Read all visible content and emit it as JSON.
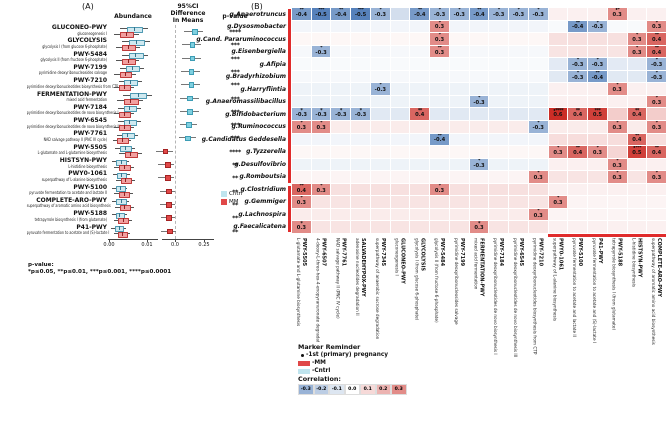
{
  "figure": {
    "panel_a_label": "(A)",
    "panel_b_label": "(B)"
  },
  "panel_a": {
    "headers": {
      "abundance": "Abundance",
      "ci_line1": "95%CI",
      "ci_line2": "Difference",
      "ci_line3": "In Means",
      "p": "p-value"
    },
    "axis": {
      "ab_ticks": [
        "0.00",
        "0.01"
      ],
      "diff_ticks": [
        "0.0",
        "0.25"
      ]
    },
    "legend": [
      {
        "label": "Cntrl",
        "color": "#bfe4ee"
      },
      {
        "label": "MM",
        "color": "#e04848"
      }
    ],
    "pnote_title": "p-value:",
    "pnote": "*p≤0.05, **p≤0.01, ***p≤0.001, ****p≤0.0001"
  },
  "panel_b": {
    "marker_legend": {
      "title": "Marker Reminder",
      "items": [
        {
          "marker": "dot",
          "label": "-1st (primary) pregnancy"
        },
        {
          "marker": "mm",
          "label": "-MM"
        },
        {
          "marker": "cntrl",
          "label": "-Cntrl"
        }
      ]
    },
    "correlation_legend": {
      "title": "Correlation:",
      "values": [
        -0.3,
        -0.2,
        -0.1,
        0.0,
        0.1,
        0.2,
        0.3
      ]
    },
    "colors": {
      "positive": "#cb2d26",
      "negative": "#4575b4",
      "cluster_bar": "#e02b2b"
    }
  },
  "chart_data": [
    {
      "type": "table",
      "title": "(A) Differentially abundant pathways (forest plot)",
      "columns": [
        "pathway",
        "description",
        "p_stars",
        "cntrl_abundance_center_spread",
        "mm_abundance_center_spread",
        "diff_mean",
        "diff_ci",
        "higher_in"
      ],
      "abundance_xlim": [
        0.0,
        0.012
      ],
      "diff_xlim": [
        -0.18,
        0.3
      ],
      "rows": [
        {
          "pathway": "GLUCONEO-PWY",
          "desc": "gluconeogenesis I",
          "p": "****",
          "cntrl": [
            0.0065,
            0.0018
          ],
          "mm": [
            0.0045,
            0.0016
          ],
          "diff_mean": 0.16,
          "diff_ci": [
            0.08,
            0.24
          ],
          "higher_in": "Cntrl"
        },
        {
          "pathway": "GLYCOLYSIS",
          "desc": "glycolysis I (from glucose 6-phosphate)",
          "p": "***",
          "cntrl": [
            0.007,
            0.0018
          ],
          "mm": [
            0.005,
            0.0016
          ],
          "diff_mean": 0.14,
          "diff_ci": [
            0.06,
            0.22
          ],
          "higher_in": "Cntrl"
        },
        {
          "pathway": "PWY-5484",
          "desc": "glycolysis II (from fructose 6-phosphate)",
          "p": "***",
          "cntrl": [
            0.0068,
            0.0017
          ],
          "mm": [
            0.0049,
            0.0015
          ],
          "diff_mean": 0.14,
          "diff_ci": [
            0.06,
            0.22
          ],
          "higher_in": "Cntrl"
        },
        {
          "pathway": "PWY-7199",
          "desc": "pyrimidine deoxyribonucleosides salvage",
          "p": "***",
          "cntrl": [
            0.006,
            0.0016
          ],
          "mm": [
            0.0042,
            0.0014
          ],
          "diff_mean": 0.13,
          "diff_ci": [
            0.05,
            0.21
          ],
          "higher_in": "Cntrl"
        },
        {
          "pathway": "PWY-7210",
          "desc": "pyrimidine deoxyribonucleotides biosynthesis from CTP",
          "p": "***",
          "cntrl": [
            0.0055,
            0.0015
          ],
          "mm": [
            0.0039,
            0.0013
          ],
          "diff_mean": 0.13,
          "diff_ci": [
            0.05,
            0.21
          ],
          "higher_in": "Cntrl"
        },
        {
          "pathway": "FERMENTATION-PWY",
          "desc": "mixed acid fermentation",
          "p": "***",
          "cntrl": [
            0.0075,
            0.0019
          ],
          "mm": [
            0.0056,
            0.0017
          ],
          "diff_mean": 0.12,
          "diff_ci": [
            0.04,
            0.2
          ],
          "higher_in": "Cntrl"
        },
        {
          "pathway": "PWY-7184",
          "desc": "pyrimidine deoxyribonucleotides de novo biosynthesis I",
          "p": "***",
          "cntrl": [
            0.0053,
            0.0015
          ],
          "mm": [
            0.0038,
            0.0013
          ],
          "diff_mean": 0.12,
          "diff_ci": [
            0.04,
            0.2
          ],
          "higher_in": "Cntrl"
        },
        {
          "pathway": "PWY-6545",
          "desc": "pyrimidine deoxyribonucleotides de novo biosynthesis III",
          "p": "***",
          "cntrl": [
            0.0053,
            0.0015
          ],
          "mm": [
            0.0038,
            0.0013
          ],
          "diff_mean": 0.11,
          "diff_ci": [
            0.04,
            0.19
          ],
          "higher_in": "Cntrl"
        },
        {
          "pathway": "PWY-7761",
          "desc": "NAD salvage pathway II (PNC IV cycle)",
          "p": "***",
          "cntrl": [
            0.0048,
            0.0014
          ],
          "mm": [
            0.0034,
            0.0012
          ],
          "diff_mean": 0.1,
          "diff_ci": [
            0.03,
            0.18
          ],
          "higher_in": "Cntrl"
        },
        {
          "pathway": "PWY-5505",
          "desc": "L-glutamate and L-glutamine biosynthesis",
          "p": "****",
          "cntrl": [
            0.0042,
            0.0013
          ],
          "mm": [
            0.0056,
            0.0015
          ],
          "diff_mean": -0.09,
          "diff_ci": [
            -0.16,
            -0.02
          ],
          "higher_in": "MM"
        },
        {
          "pathway": "HISTSYN-PWY",
          "desc": "L-histidine biosynthesis",
          "p": "**",
          "cntrl": [
            0.003,
            0.0011
          ],
          "mm": [
            0.004,
            0.0013
          ],
          "diff_mean": -0.07,
          "diff_ci": [
            -0.14,
            -0.01
          ],
          "higher_in": "MM"
        },
        {
          "pathway": "PWY0-1061",
          "desc": "superpathway of L-alanine biosynthesis",
          "p": "**",
          "cntrl": [
            0.0032,
            0.0011
          ],
          "mm": [
            0.0043,
            0.0013
          ],
          "diff_mean": -0.07,
          "diff_ci": [
            -0.14,
            -0.01
          ],
          "higher_in": "MM"
        },
        {
          "pathway": "PWY-5100",
          "desc": "pyruvate fermentation to acetate and lactate II",
          "p": "**",
          "cntrl": [
            0.0028,
            0.001
          ],
          "mm": [
            0.0038,
            0.0012
          ],
          "diff_mean": -0.06,
          "diff_ci": [
            -0.13,
            0.0
          ],
          "higher_in": "MM"
        },
        {
          "pathway": "COMPLETE-ARO-PWY",
          "desc": "superpathway of aromatic amino acid biosynthesis",
          "p": "**",
          "cntrl": [
            0.003,
            0.0011
          ],
          "mm": [
            0.004,
            0.0012
          ],
          "diff_mean": -0.06,
          "diff_ci": [
            -0.13,
            0.0
          ],
          "higher_in": "MM"
        },
        {
          "pathway": "PWY-5188",
          "desc": "tetrapyrrole biosynthesis I (from glutamate)",
          "p": "**",
          "cntrl": [
            0.0027,
            0.001
          ],
          "mm": [
            0.0036,
            0.0012
          ],
          "diff_mean": -0.06,
          "diff_ci": [
            -0.12,
            0.0
          ],
          "higher_in": "MM"
        },
        {
          "pathway": "P41-PWY",
          "desc": "pyruvate fermentation to acetate and (S)-lactate I",
          "p": "**",
          "cntrl": [
            0.0025,
            0.001
          ],
          "mm": [
            0.0034,
            0.0011
          ],
          "diff_mean": -0.05,
          "diff_ci": [
            -0.12,
            0.01
          ],
          "higher_in": "MM"
        }
      ]
    },
    {
      "type": "heatmap",
      "title": "(B) Genus-pathway correlations",
      "value_range": [
        -0.3,
        0.3
      ],
      "cluster_split": 13,
      "rows": [
        "g.Anaerotruncus",
        "g.Dysosmobacter",
        "g.Cand. Pararuminococcus",
        "g.Eisenbergiella",
        "g.Afipia",
        "g.Bradyrhizobium",
        "g.Harryflintia",
        "g.Anaeromassilibacillus",
        "g.Bifidobacterium",
        "g.Ruminococcus",
        "g.Candidatus Geddesella",
        "g.Tyzzerella",
        "g.Desulfovibrio",
        "g.Romboutsia",
        "g.Clostridium",
        "g.Gemmiger",
        "g.Lachnospira",
        "g.Faecalicatena"
      ],
      "cols": [
        {
          "id": "PWY-5505",
          "desc": "L-glutamate and L-glutamine biosynthesis"
        },
        {
          "id": "PWY-6507",
          "desc": "4-deoxy-L-threo-hex-4-enopyranuronate degradation"
        },
        {
          "id": "PWY-7761",
          "desc": "NAD salvage pathway II (PNC IV cycle)"
        },
        {
          "id": "SALVADEHYPOX-PWY",
          "desc": "adenosine nucleotides degradation II"
        },
        {
          "id": "PWY-7345",
          "desc": "superpathway of anaerobic sucrose degradation"
        },
        {
          "id": "GLUCONEO-PWY",
          "desc": "gluconeogenesis I"
        },
        {
          "id": "GLYCOLYSIS",
          "desc": "glycolysis I (from glucose 6-phosphate)"
        },
        {
          "id": "PWY-5484",
          "desc": "glycolysis II (from fructose 6-phosphate)"
        },
        {
          "id": "PWY-7199",
          "desc": "pyrimidine deoxyribonucleosides salvage"
        },
        {
          "id": "FERMENTATION-PWY",
          "desc": "mixed acid fermentation"
        },
        {
          "id": "PWY-7184",
          "desc": "pyrimidine deoxyribonucleotides de novo biosynthesis I"
        },
        {
          "id": "PWY-6545",
          "desc": "pyrimidine deoxyribonucleotides de novo biosynthesis III"
        },
        {
          "id": "PWY-7210",
          "desc": "pyrimidine deoxyribonucleotides biosynthesis from CTP"
        },
        {
          "id": "PWY0-1061",
          "desc": "superpathway of L-alanine biosynthesis"
        },
        {
          "id": "PWY-5100",
          "desc": "pyruvate fermentation to acetate and lactate II"
        },
        {
          "id": "P41-PWY",
          "desc": "pyruvate fermentation to acetate and (S)-lactate I"
        },
        {
          "id": "PWY-5188",
          "desc": "tetrapyrrole biosynthesis I (from glutamate)"
        },
        {
          "id": "HISTSYN-PWY",
          "desc": "L-histidine biosynthesis"
        },
        {
          "id": "COMPLETE-ARO-PWY",
          "desc": "superpathway of aromatic amino acid biosynthesis"
        }
      ],
      "row_base_tint": [
        [
          -0.13,
          0.04
        ],
        [
          -0.04,
          -0.02
        ],
        [
          0.02,
          0.08
        ],
        [
          -0.03,
          0.07
        ],
        [
          -0.02,
          -0.08
        ],
        [
          -0.03,
          -0.09
        ],
        [
          -0.05,
          0.04
        ],
        [
          -0.05,
          0.04
        ],
        [
          -0.09,
          0.13
        ],
        [
          0.05,
          0.05
        ],
        [
          -0.04,
          0.09
        ],
        [
          0.02,
          0.11
        ],
        [
          -0.05,
          0.04
        ],
        [
          0.03,
          0.07
        ],
        [
          0.08,
          0.04
        ],
        [
          0.07,
          0.03
        ],
        [
          0.05,
          0.03
        ],
        [
          0.07,
          0.04
        ]
      ],
      "cells": [
        {
          "r": 0,
          "c": 0,
          "v": -0.4,
          "s": "**"
        },
        {
          "r": 0,
          "c": 1,
          "v": -0.5,
          "s": "***"
        },
        {
          "r": 0,
          "c": 2,
          "v": -0.4,
          "s": "**"
        },
        {
          "r": 0,
          "c": 3,
          "v": -0.5,
          "s": "***"
        },
        {
          "r": 0,
          "c": 4,
          "v": -0.3,
          "s": "*"
        },
        {
          "r": 0,
          "c": 6,
          "v": -0.4,
          "s": "**"
        },
        {
          "r": 0,
          "c": 7,
          "v": -0.3,
          "s": "*"
        },
        {
          "r": 0,
          "c": 8,
          "v": -0.3,
          "s": "*"
        },
        {
          "r": 0,
          "c": 9,
          "v": -0.4,
          "s": "**"
        },
        {
          "r": 0,
          "c": 10,
          "v": -0.3,
          "s": "*"
        },
        {
          "r": 0,
          "c": 11,
          "v": -0.3,
          "s": "*"
        },
        {
          "r": 0,
          "c": 12,
          "v": -0.3,
          "s": "*"
        },
        {
          "r": 0,
          "c": 16,
          "v": 0.3,
          "s": "*",
          "dot": true
        },
        {
          "r": 1,
          "c": 7,
          "v": 0.3,
          "s": "*"
        },
        {
          "r": 1,
          "c": 14,
          "v": -0.4,
          "s": "**"
        },
        {
          "r": 1,
          "c": 15,
          "v": -0.3,
          "s": "*"
        },
        {
          "r": 1,
          "c": 18,
          "v": 0.3,
          "s": "*"
        },
        {
          "r": 2,
          "c": 7,
          "v": 0.3,
          "s": "*"
        },
        {
          "r": 2,
          "c": 17,
          "v": 0.3,
          "s": "*"
        },
        {
          "r": 2,
          "c": 18,
          "v": 0.4,
          "s": "**"
        },
        {
          "r": 3,
          "c": 1,
          "v": -0.3,
          "s": "*"
        },
        {
          "r": 3,
          "c": 7,
          "v": 0.3,
          "s": "**"
        },
        {
          "r": 3,
          "c": 17,
          "v": 0.3,
          "s": "*"
        },
        {
          "r": 3,
          "c": 18,
          "v": 0.4,
          "s": "**"
        },
        {
          "r": 4,
          "c": 14,
          "v": -0.3,
          "s": "*"
        },
        {
          "r": 4,
          "c": 15,
          "v": -0.3,
          "s": "*"
        },
        {
          "r": 4,
          "c": 18,
          "v": -0.3,
          "s": "*"
        },
        {
          "r": 5,
          "c": 14,
          "v": -0.3,
          "s": "*"
        },
        {
          "r": 5,
          "c": 15,
          "v": -0.4,
          "s": "**"
        },
        {
          "r": 5,
          "c": 18,
          "v": -0.3,
          "s": "*"
        },
        {
          "r": 6,
          "c": 4,
          "v": -0.3,
          "s": "*"
        },
        {
          "r": 6,
          "c": 16,
          "v": 0.3,
          "s": "*"
        },
        {
          "r": 7,
          "c": 9,
          "v": -0.3,
          "s": "*"
        },
        {
          "r": 7,
          "c": 18,
          "v": 0.3,
          "s": "*"
        },
        {
          "r": 8,
          "c": 0,
          "v": -0.3,
          "s": "*"
        },
        {
          "r": 8,
          "c": 1,
          "v": -0.3,
          "s": "*"
        },
        {
          "r": 8,
          "c": 2,
          "v": -0.3,
          "s": "*"
        },
        {
          "r": 8,
          "c": 3,
          "v": -0.3,
          "s": "*"
        },
        {
          "r": 8,
          "c": 6,
          "v": 0.4,
          "s": "**"
        },
        {
          "r": 8,
          "c": 13,
          "v": 0.6,
          "s": "****",
          "dot": true
        },
        {
          "r": 8,
          "c": 14,
          "v": 0.4,
          "s": "**"
        },
        {
          "r": 8,
          "c": 15,
          "v": 0.5,
          "s": "***"
        },
        {
          "r": 8,
          "c": 17,
          "v": 0.4,
          "s": "**"
        },
        {
          "r": 9,
          "c": 0,
          "v": 0.3,
          "s": "*"
        },
        {
          "r": 9,
          "c": 1,
          "v": 0.3,
          "s": "*"
        },
        {
          "r": 9,
          "c": 12,
          "v": -0.3,
          "s": "*"
        },
        {
          "r": 9,
          "c": 16,
          "v": 0.3,
          "s": "*"
        },
        {
          "r": 9,
          "c": 18,
          "v": 0.3,
          "s": "*"
        },
        {
          "r": 10,
          "c": 7,
          "v": -0.4,
          "s": "**"
        },
        {
          "r": 10,
          "c": 17,
          "v": 0.4,
          "s": "**"
        },
        {
          "r": 11,
          "c": 13,
          "v": 0.3,
          "s": "*"
        },
        {
          "r": 11,
          "c": 14,
          "v": 0.4,
          "s": "**"
        },
        {
          "r": 11,
          "c": 15,
          "v": 0.3,
          "s": "*"
        },
        {
          "r": 11,
          "c": 17,
          "v": 0.5,
          "s": "***",
          "dot": true
        },
        {
          "r": 11,
          "c": 18,
          "v": 0.4,
          "s": "**"
        },
        {
          "r": 12,
          "c": 9,
          "v": -0.3,
          "s": "*"
        },
        {
          "r": 12,
          "c": 16,
          "v": 0.3,
          "s": "*"
        },
        {
          "r": 13,
          "c": 12,
          "v": 0.3,
          "s": "*"
        },
        {
          "r": 13,
          "c": 16,
          "v": 0.3,
          "s": "*"
        },
        {
          "r": 13,
          "c": 18,
          "v": 0.3,
          "s": "*"
        },
        {
          "r": 14,
          "c": 0,
          "v": 0.4,
          "s": "**"
        },
        {
          "r": 14,
          "c": 1,
          "v": 0.3,
          "s": "*"
        },
        {
          "r": 14,
          "c": 7,
          "v": 0.3,
          "s": "*"
        },
        {
          "r": 15,
          "c": 0,
          "v": 0.3,
          "s": "*"
        },
        {
          "r": 15,
          "c": 13,
          "v": 0.3,
          "s": "*"
        },
        {
          "r": 16,
          "c": 12,
          "v": 0.3,
          "s": "*"
        },
        {
          "r": 17,
          "c": 0,
          "v": 0.3,
          "s": "*"
        },
        {
          "r": 17,
          "c": 9,
          "v": 0.3,
          "s": "*"
        }
      ]
    }
  ]
}
